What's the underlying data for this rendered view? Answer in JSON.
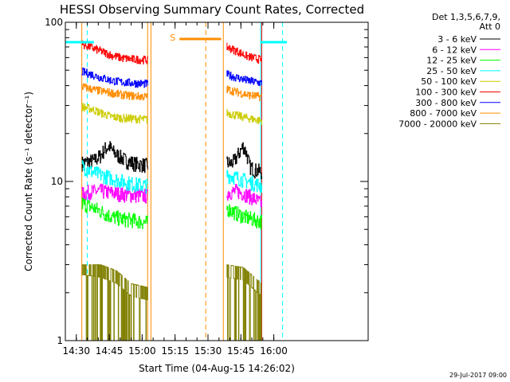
{
  "chart_data": {
    "type": "line",
    "title": "HESSI Observing Summary Count Rates, Corrected",
    "xlabel": "Start Time (04-Aug-15 14:26:02)",
    "ylabel": "Corrected Count Rate (s⁻¹ detector⁻¹)",
    "yscale": "log",
    "ylim": [
      1,
      100
    ],
    "xlim_minutes": [
      14.0,
      152.0
    ],
    "x_ticks": [
      {
        "m": 19.0,
        "label": "14:30"
      },
      {
        "m": 34.0,
        "label": "14:45"
      },
      {
        "m": 49.0,
        "label": "15:00"
      },
      {
        "m": 64.0,
        "label": "15:15"
      },
      {
        "m": 79.0,
        "label": "15:30"
      },
      {
        "m": 94.0,
        "label": "15:45"
      },
      {
        "m": 109.0,
        "label": "16:00"
      }
    ],
    "y_ticks": [
      {
        "v": 1,
        "label": "1"
      },
      {
        "v": 10,
        "label": "10"
      },
      {
        "v": 100,
        "label": "100"
      }
    ],
    "legend_header": [
      "Det 1,3,5,6,7,9,",
      "Att 0"
    ],
    "legend_placement": "outside right",
    "series": [
      {
        "name": "3 - 6 keV",
        "color": "#000000",
        "segments": [
          {
            "start": 21.5,
            "end": 51.5,
            "points": [
              [
                21.5,
                13.0
              ],
              [
                24,
                13.3
              ],
              [
                27,
                13.5
              ],
              [
                30,
                14.5
              ],
              [
                32,
                16.0
              ],
              [
                34,
                16.6
              ],
              [
                36,
                15.2
              ],
              [
                39,
                14.2
              ],
              [
                42,
                13.4
              ],
              [
                46,
                12.9
              ],
              [
                51.5,
                12.6
              ]
            ]
          },
          {
            "start": 87.5,
            "end": 103.5,
            "points": [
              [
                87.5,
                13.2
              ],
              [
                89,
                12.9
              ],
              [
                91,
                13.4
              ],
              [
                93,
                15.0
              ],
              [
                95,
                16.7
              ],
              [
                96.5,
                15.0
              ],
              [
                98,
                12.4
              ],
              [
                100,
                11.8
              ],
              [
                103.5,
                11.5
              ]
            ]
          }
        ]
      },
      {
        "name": "6 - 12 keV",
        "color": "#ff00ff",
        "segments": [
          {
            "start": 21.5,
            "end": 51.5,
            "points": [
              [
                21.5,
                8.3
              ],
              [
                25,
                8.6
              ],
              [
                30,
                8.7
              ],
              [
                35,
                8.5
              ],
              [
                40,
                8.3
              ],
              [
                45,
                8.2
              ],
              [
                51.5,
                8.1
              ]
            ]
          },
          {
            "start": 87.5,
            "end": 103.5,
            "points": [
              [
                87.5,
                8.5
              ],
              [
                92,
                8.7
              ],
              [
                96,
                8.3
              ],
              [
                100,
                7.8
              ],
              [
                103.5,
                7.2
              ]
            ]
          }
        ]
      },
      {
        "name": "12 - 25 keV",
        "color": "#00ff00",
        "segments": [
          {
            "start": 21.5,
            "end": 51.5,
            "points": [
              [
                21.5,
                7.3
              ],
              [
                26,
                6.9
              ],
              [
                30,
                6.5
              ],
              [
                35,
                6.0
              ],
              [
                40,
                5.8
              ],
              [
                45,
                5.7
              ],
              [
                51.5,
                5.5
              ]
            ]
          },
          {
            "start": 87.5,
            "end": 103.5,
            "points": [
              [
                87.5,
                6.8
              ],
              [
                92,
                6.3
              ],
              [
                97,
                5.9
              ],
              [
                103.5,
                5.6
              ]
            ]
          }
        ]
      },
      {
        "name": "25 - 50 keV",
        "color": "#00ffff",
        "segments": [
          {
            "start": 21.5,
            "end": 51.5,
            "points": [
              [
                21.5,
                12.5
              ],
              [
                26,
                11.5
              ],
              [
                30,
                11.0
              ],
              [
                35,
                10.5
              ],
              [
                40,
                10.0
              ],
              [
                45,
                9.6
              ],
              [
                51.5,
                9.4
              ]
            ]
          },
          {
            "start": 87.5,
            "end": 103.5,
            "points": [
              [
                87.5,
                11.0
              ],
              [
                92,
                10.6
              ],
              [
                97,
                10.0
              ],
              [
                103.5,
                9.4
              ]
            ]
          }
        ]
      },
      {
        "name": "50 - 100 keV",
        "color": "#cccc00",
        "segments": [
          {
            "start": 21.5,
            "end": 51.5,
            "points": [
              [
                21.5,
                29.5
              ],
              [
                26,
                28.5
              ],
              [
                30,
                27.0
              ],
              [
                35,
                25.5
              ],
              [
                40,
                25.0
              ],
              [
                45,
                24.8
              ],
              [
                51.5,
                24.5
              ]
            ]
          },
          {
            "start": 87.5,
            "end": 103.5,
            "points": [
              [
                87.5,
                27.0
              ],
              [
                92,
                26.0
              ],
              [
                97,
                25.0
              ],
              [
                103.5,
                24.0
              ]
            ]
          }
        ]
      },
      {
        "name": "100 - 300 keV",
        "color": "#ff0000",
        "segments": [
          {
            "start": 21.5,
            "end": 51.5,
            "points": [
              [
                21.5,
                73
              ],
              [
                25,
                70
              ],
              [
                30,
                66
              ],
              [
                35,
                62
              ],
              [
                40,
                59.5
              ],
              [
                45,
                58.5
              ],
              [
                51.5,
                58
              ]
            ]
          },
          {
            "start": 87.5,
            "end": 103.5,
            "points": [
              [
                87.5,
                70
              ],
              [
                92,
                66
              ],
              [
                97,
                61
              ],
              [
                103.5,
                58
              ]
            ]
          }
        ]
      },
      {
        "name": "300 - 800 keV",
        "color": "#0000ff",
        "segments": [
          {
            "start": 21.5,
            "end": 51.5,
            "points": [
              [
                21.5,
                49
              ],
              [
                26,
                47
              ],
              [
                30,
                45
              ],
              [
                35,
                43
              ],
              [
                40,
                42
              ],
              [
                45,
                41.5
              ],
              [
                51.5,
                41
              ]
            ]
          },
          {
            "start": 87.5,
            "end": 103.5,
            "points": [
              [
                87.5,
                47
              ],
              [
                92,
                45
              ],
              [
                97,
                43
              ],
              [
                103.5,
                41.5
              ]
            ]
          }
        ]
      },
      {
        "name": "800 - 7000 keV",
        "color": "#ff8c00",
        "segments": [
          {
            "start": 21.5,
            "end": 51.5,
            "points": [
              [
                21.5,
                39.5
              ],
              [
                26,
                38
              ],
              [
                30,
                37
              ],
              [
                35,
                36
              ],
              [
                40,
                35
              ],
              [
                45,
                34.5
              ],
              [
                51.5,
                34
              ]
            ]
          },
          {
            "start": 87.5,
            "end": 103.5,
            "points": [
              [
                87.5,
                38
              ],
              [
                92,
                36.5
              ],
              [
                97,
                35
              ],
              [
                103.5,
                34
              ]
            ]
          }
        ]
      },
      {
        "name": "7000 - 20000 keV",
        "color": "#808000",
        "segments": [
          {
            "start": 21.5,
            "end": 51.5,
            "points": [
              [
                21.5,
                2.6
              ],
              [
                30,
                2.5
              ],
              [
                37,
                2.3
              ],
              [
                44,
                1.9
              ],
              [
                51.5,
                1.8
              ]
            ]
          },
          {
            "start": 87.5,
            "end": 103.5,
            "points": [
              [
                87.5,
                2.5
              ],
              [
                95,
                2.4
              ],
              [
                103.5,
                1.9
              ]
            ]
          }
        ]
      }
    ],
    "attenuator_level": {
      "value": 75,
      "color": "#00ffff",
      "segments": [
        [
          14.0,
          27.0
        ],
        [
          103.0,
          115.0
        ]
      ]
    },
    "saa_bar": {
      "label": "S",
      "value": 75,
      "color": "#ff8c00",
      "start": 66.0,
      "end": 85.0
    },
    "vertical_lines": [
      {
        "m": 14.0,
        "color": "#00ffff",
        "style": "solid"
      },
      {
        "m": 24.0,
        "color": "#00ffff",
        "style": "dashed"
      },
      {
        "m": 103.0,
        "color": "#00ffff",
        "style": "solid"
      },
      {
        "m": 113.0,
        "color": "#00ffff",
        "style": "dashed"
      },
      {
        "m": 53.0,
        "color": "#ff8c00",
        "style": "solid"
      },
      {
        "m": 78.0,
        "color": "#ff8c00",
        "style": "dashed"
      },
      {
        "m": 86.0,
        "color": "#ff8c00",
        "style": "solid"
      },
      {
        "m": 21.5,
        "color": "#ff8c00",
        "style": "solid"
      },
      {
        "m": 51.5,
        "color": "#ff8c00",
        "style": "solid"
      },
      {
        "m": 103.5,
        "color": "#ff0000",
        "style": "solid"
      }
    ],
    "footer_date": "29-Jul-2017 09:00"
  }
}
